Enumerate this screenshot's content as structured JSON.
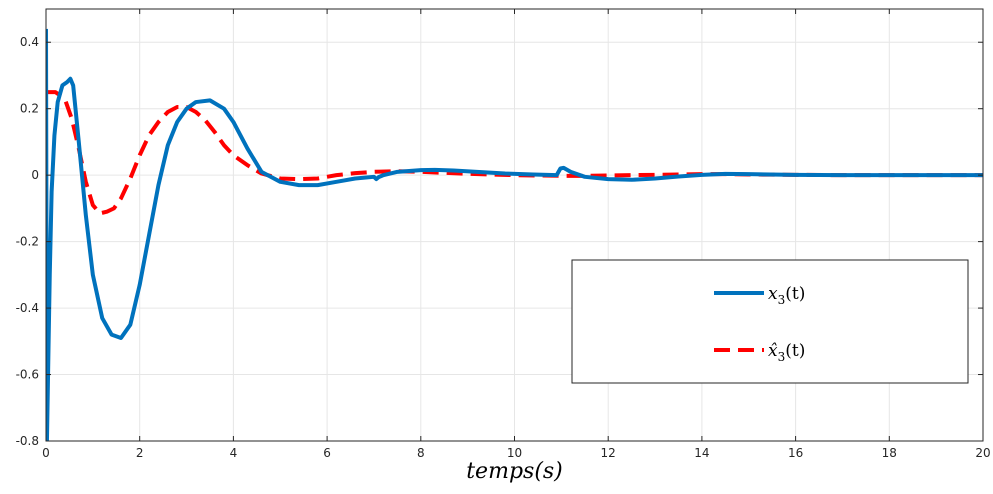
{
  "chart_data": {
    "type": "line",
    "xlabel": "temps(s)",
    "ylabel": "",
    "xlim": [
      0,
      20
    ],
    "ylim": [
      -0.8,
      0.5
    ],
    "grid": true,
    "legend_position": "lower-right",
    "x_ticks": [
      0,
      2,
      4,
      6,
      8,
      10,
      12,
      14,
      16,
      18,
      20
    ],
    "y_ticks": [
      -0.8,
      -0.6,
      -0.4,
      -0.2,
      0,
      0.2,
      0.4
    ],
    "x_tick_labels": [
      "0",
      "2",
      "4",
      "6",
      "8",
      "10",
      "12",
      "14",
      "16",
      "18",
      "20"
    ],
    "y_tick_labels": [
      "-0.8",
      "-0.6",
      "-0.4",
      "-0.2",
      "0",
      "0.2",
      "0.4"
    ],
    "series": [
      {
        "name": "x3(t)",
        "legend_main": "x",
        "legend_sub": "3",
        "legend_suffix": "(t)",
        "color": "#0072BD",
        "style": "solid",
        "x": [
          0,
          0.02,
          0.05,
          0.08,
          0.12,
          0.18,
          0.25,
          0.35,
          0.45,
          0.52,
          0.58,
          0.7,
          0.85,
          1.0,
          1.2,
          1.4,
          1.6,
          1.8,
          2.0,
          2.2,
          2.4,
          2.6,
          2.8,
          3.0,
          3.2,
          3.5,
          3.8,
          4.0,
          4.3,
          4.6,
          5.0,
          5.4,
          5.8,
          6.2,
          6.6,
          7.0,
          7.05,
          7.1,
          7.2,
          7.5,
          8.0,
          8.3,
          8.7,
          9.2,
          9.8,
          10.4,
          10.9,
          10.98,
          11.05,
          11.2,
          11.5,
          12.0,
          12.5,
          13.0,
          13.5,
          14.0,
          14.5,
          15.0,
          16.0,
          17.0,
          18.0,
          19.0,
          20.0
        ],
        "y": [
          0.44,
          -0.8,
          -0.55,
          -0.3,
          -0.05,
          0.12,
          0.22,
          0.27,
          0.28,
          0.29,
          0.27,
          0.1,
          -0.12,
          -0.3,
          -0.43,
          -0.48,
          -0.49,
          -0.45,
          -0.33,
          -0.18,
          -0.03,
          0.09,
          0.16,
          0.2,
          0.22,
          0.225,
          0.2,
          0.16,
          0.08,
          0.01,
          -0.02,
          -0.03,
          -0.03,
          -0.02,
          -0.01,
          -0.005,
          -0.012,
          -0.006,
          0.0,
          0.01,
          0.015,
          0.016,
          0.014,
          0.01,
          0.005,
          0.002,
          0.0,
          0.02,
          0.022,
          0.01,
          -0.005,
          -0.012,
          -0.014,
          -0.01,
          -0.004,
          0.001,
          0.004,
          0.003,
          0.001,
          0.0,
          0.0,
          0.0,
          0.0
        ]
      },
      {
        "name": "x̂3(t)",
        "legend_main": "x̂",
        "legend_sub": "3",
        "legend_suffix": "(t)",
        "color": "#FF0000",
        "style": "dashed",
        "x": [
          0,
          0.2,
          0.4,
          0.55,
          0.7,
          0.85,
          1.0,
          1.15,
          1.3,
          1.45,
          1.6,
          1.8,
          2.0,
          2.2,
          2.4,
          2.6,
          2.8,
          3.0,
          3.2,
          3.4,
          3.6,
          3.8,
          4.0,
          4.3,
          4.6,
          5.0,
          5.4,
          5.8,
          6.2,
          6.6,
          7.0,
          7.5,
          8.0,
          8.5,
          9.0,
          9.5,
          10.0,
          10.5,
          11.0,
          11.5,
          12.0,
          12.5,
          13.0,
          13.5,
          14.0,
          14.5,
          15.0,
          16.0,
          17.0,
          18.0,
          19.0,
          20.0
        ],
        "y": [
          0.25,
          0.25,
          0.23,
          0.17,
          0.08,
          -0.02,
          -0.09,
          -0.115,
          -0.11,
          -0.1,
          -0.07,
          -0.01,
          0.06,
          0.12,
          0.16,
          0.19,
          0.205,
          0.205,
          0.19,
          0.165,
          0.13,
          0.09,
          0.06,
          0.03,
          0.005,
          -0.01,
          -0.012,
          -0.01,
          0.0,
          0.006,
          0.01,
          0.012,
          0.01,
          0.007,
          0.004,
          0.002,
          0.0,
          -0.001,
          -0.002,
          -0.002,
          -0.001,
          0.0,
          0.001,
          0.002,
          0.003,
          0.003,
          0.002,
          0.001,
          0.0,
          0.0,
          0.0,
          0.0
        ]
      }
    ]
  }
}
